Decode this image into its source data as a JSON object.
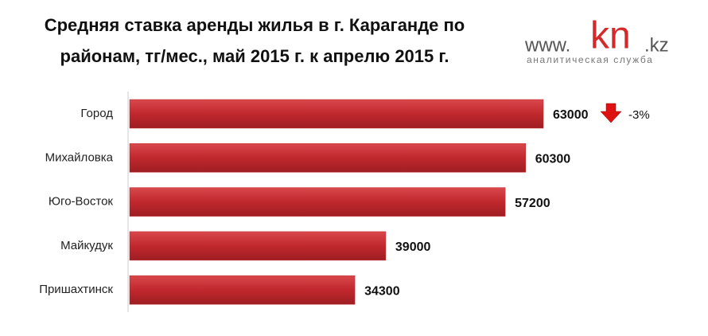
{
  "chart_data": {
    "type": "bar",
    "orientation": "horizontal",
    "title": [
      "Средняя ставка аренды жилья в г. Караганде по",
      "районам, тг/мес., май 2015 г. к апрелю 2015 г."
    ],
    "categories": [
      "Город",
      "Михайловка",
      "Юго-Восток",
      "Майкудук",
      "Пришахтинск"
    ],
    "values": [
      63000,
      60300,
      57200,
      39000,
      34300
    ],
    "color": "#c0282d",
    "value_changes": [
      -3,
      null,
      null,
      null,
      null
    ],
    "value_change_labels": [
      "-3%",
      null,
      null,
      null,
      null
    ]
  },
  "logo": {
    "prefix": "www.",
    "main": "kn",
    "suffix": ".kz",
    "tagline": "аналитическая служба"
  }
}
